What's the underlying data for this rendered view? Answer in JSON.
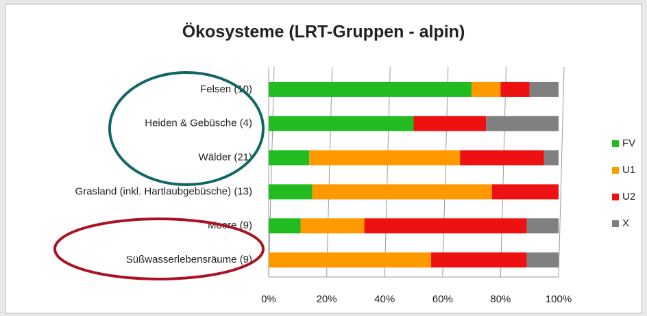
{
  "chart_data": {
    "type": "stacked_bar_horizontal",
    "title": "Ökosysteme (LRT-Gruppen - alpin)",
    "categories": [
      "Felsen (10)",
      "Heiden & Gebüsche (4)",
      "Wälder (21)",
      "Grasland (inkl. Hartlaubgebüsche) (13)",
      "Moore (9)",
      "Süßwasserlebensräume (9)"
    ],
    "series": [
      {
        "name": "FV",
        "color": "#22bb22",
        "values": [
          70,
          50,
          14,
          15,
          11,
          0
        ]
      },
      {
        "name": "U1",
        "color": "#ff9900",
        "values": [
          10,
          0,
          52,
          62,
          22,
          56
        ]
      },
      {
        "name": "U2",
        "color": "#ee1111",
        "values": [
          10,
          25,
          29,
          23,
          56,
          33
        ]
      },
      {
        "name": "X",
        "color": "#808080",
        "values": [
          10,
          25,
          5,
          0,
          11,
          11
        ]
      }
    ],
    "xlim": [
      0,
      100
    ],
    "xticks": [
      {
        "value": 0,
        "label": "0%"
      },
      {
        "value": 20,
        "label": "20%"
      },
      {
        "value": 40,
        "label": "40%"
      },
      {
        "value": 60,
        "label": "60%"
      },
      {
        "value": 80,
        "label": "80%"
      },
      {
        "value": 100,
        "label": "100%"
      }
    ],
    "grid": true,
    "legend": "right"
  }
}
